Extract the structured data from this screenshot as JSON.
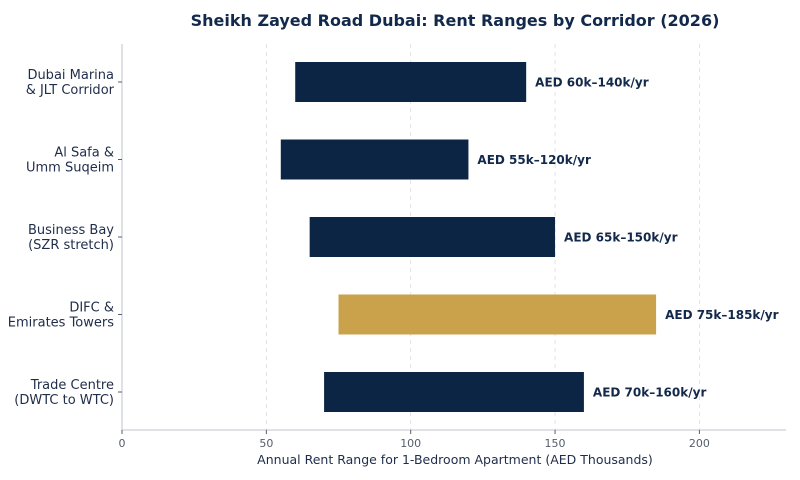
{
  "chart_data": {
    "type": "bar",
    "orientation": "horizontal-range",
    "title": "Sheikh Zayed Road Dubai: Rent Ranges by Corridor (2026)",
    "xlabel": "Annual Rent Range for 1-Bedroom Apartment (AED Thousands)",
    "ylabel": "",
    "xlim": [
      0,
      230
    ],
    "xticks": [
      0,
      50,
      100,
      150,
      200
    ],
    "grid": "vertical-dashed",
    "categories": [
      [
        "Dubai Marina",
        "& JLT Corridor"
      ],
      [
        "Al Safa &",
        "Umm Suqeim"
      ],
      [
        "Business Bay",
        "(SZR stretch)"
      ],
      [
        "DIFC &",
        "Emirates Towers"
      ],
      [
        "Trade Centre",
        "(DWTC to WTC)"
      ]
    ],
    "ranges": [
      {
        "low": 60,
        "high": 140,
        "label": "AED 60k–140k/yr",
        "color": "#0c2544"
      },
      {
        "low": 55,
        "high": 120,
        "label": "AED 55k–120k/yr",
        "color": "#0c2544"
      },
      {
        "low": 65,
        "high": 150,
        "label": "AED 65k–150k/yr",
        "color": "#0c2544"
      },
      {
        "low": 75,
        "high": 185,
        "label": "AED 75k–185k/yr",
        "color": "#cba24c"
      },
      {
        "low": 70,
        "high": 160,
        "label": "AED 70k–160k/yr",
        "color": "#0c2544"
      }
    ]
  }
}
